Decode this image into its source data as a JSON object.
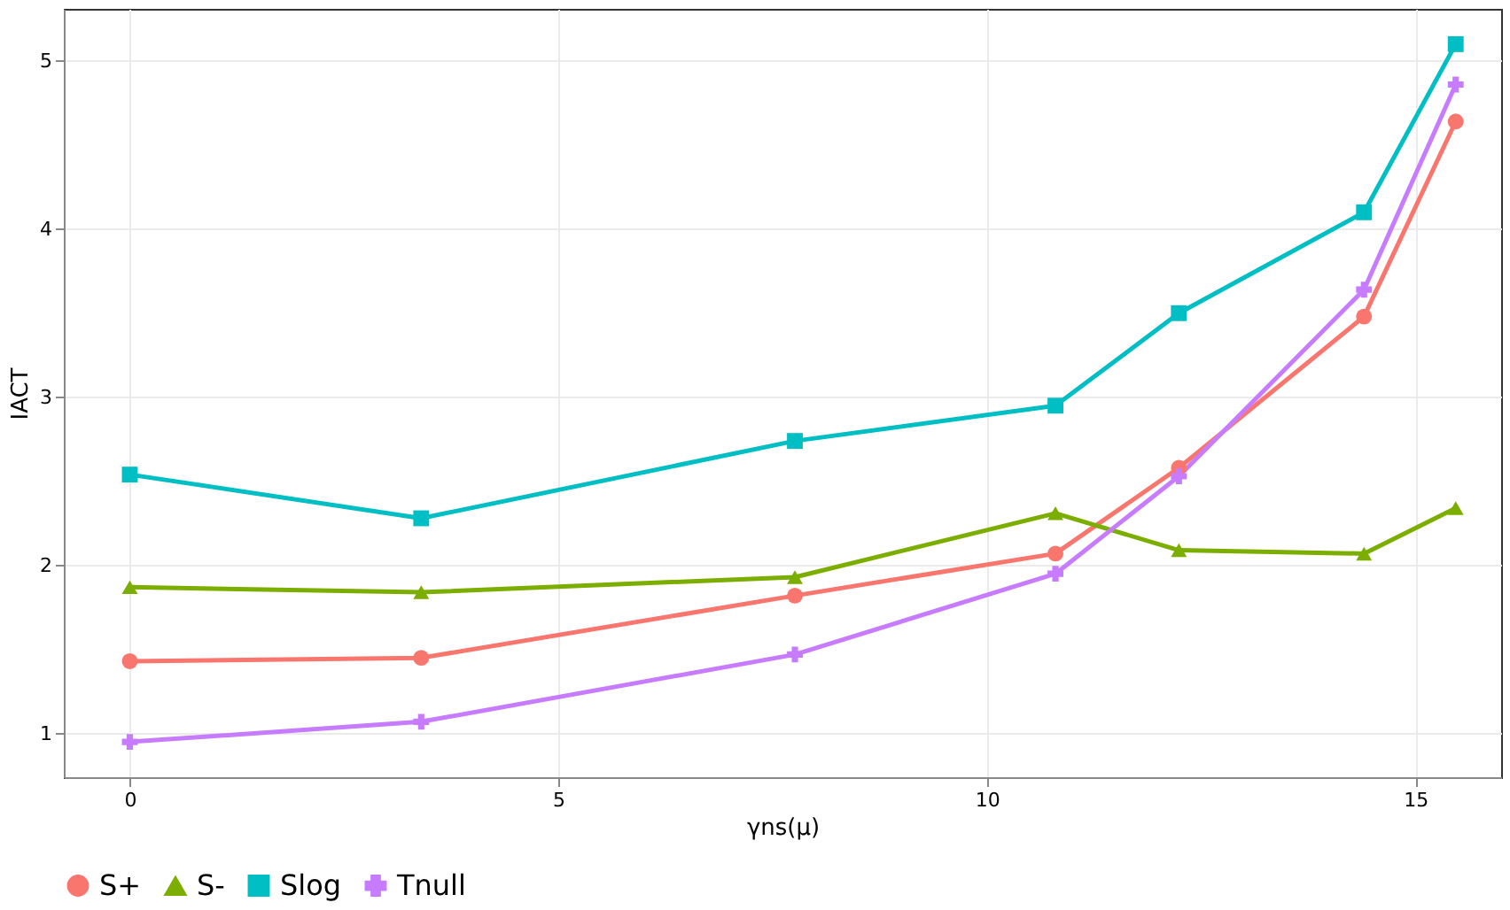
{
  "chart_data": {
    "type": "line",
    "xlabel": "γns(μ)",
    "ylabel": "IACT",
    "x": [
      0,
      3.4,
      7.76,
      10.8,
      12.24,
      14.4,
      15.47
    ],
    "series": [
      {
        "name": "S+",
        "color": "#f8766d",
        "marker": "circle",
        "values": [
          1.43,
          1.45,
          1.82,
          2.07,
          2.58,
          3.48,
          4.64
        ]
      },
      {
        "name": "S-",
        "color": "#7cae00",
        "marker": "triangle",
        "values": [
          1.87,
          1.84,
          1.93,
          2.31,
          2.09,
          2.07,
          2.34
        ]
      },
      {
        "name": "Slog",
        "color": "#00bfc4",
        "marker": "square",
        "values": [
          2.54,
          2.28,
          2.74,
          2.95,
          3.5,
          4.1,
          5.1
        ]
      },
      {
        "name": "Tnull",
        "color": "#c77cff",
        "marker": "cross",
        "values": [
          0.95,
          1.07,
          1.47,
          1.95,
          2.53,
          3.64,
          4.86
        ]
      }
    ],
    "xlim": [
      -0.77,
      16.0
    ],
    "ylim": [
      0.74,
      5.31
    ],
    "xticks": [
      0,
      5,
      10,
      15
    ],
    "yticks": [
      1,
      2,
      3,
      4,
      5
    ],
    "grid": true,
    "legend": "bottom",
    "line_style": "solid"
  }
}
